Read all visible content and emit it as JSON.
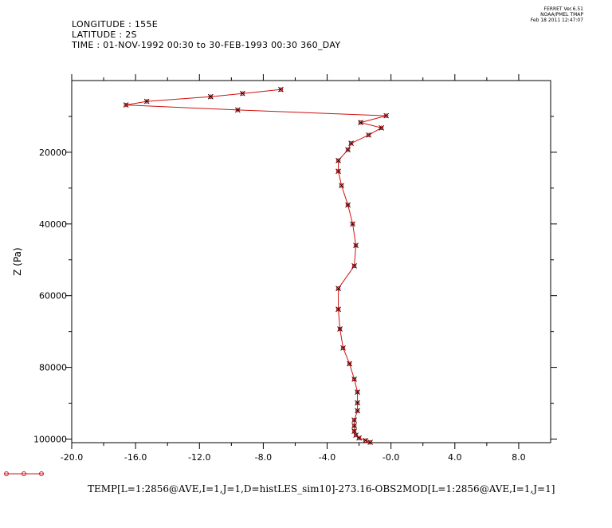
{
  "header": {
    "longitude": "LONGITUDE : 155E",
    "latitude": "LATITUDE : 2S",
    "time": "TIME : 01-NOV-1992 00:30 to 30-FEB-1993 00:30 360_DAY"
  },
  "stamp": {
    "line1": "FERRET Ver.6.51",
    "line2": "NOAA/PMEL TMAP",
    "line3": "Feb 18 2011 12:47:07"
  },
  "caption": "TEMP[L=1:2856@AVE,I=1,J=1,D=histLES_sim10]-273.16-OBS2MOD[L=1:2856@AVE,I=1,J=1]",
  "legend_lines": [
    "",
    ""
  ],
  "colors": {
    "series": "#d01010",
    "marker": "#000000",
    "axis": "#000000"
  },
  "chart_data": {
    "type": "line",
    "xlabel": "",
    "ylabel": "Z (Pa)",
    "xlim": [
      -20,
      10
    ],
    "ylim": [
      101000,
      0
    ],
    "y_inverted": true,
    "x_ticks": [
      -20.0,
      -16.0,
      -12.0,
      -8.0,
      -4.0,
      -0.0,
      4.0,
      8.0
    ],
    "x_tick_labels": [
      "-20.0",
      "-16.0",
      "-12.0",
      "-8.0",
      "-4.0",
      "-0.0",
      "4.0",
      "8.0"
    ],
    "y_ticks": [
      20000,
      40000,
      60000,
      80000,
      100000
    ],
    "y_tick_labels": [
      "20000",
      "40000",
      "60000",
      "80000",
      "100000"
    ],
    "grid": false,
    "series": [
      {
        "name": "",
        "points": [
          [
            -6.9,
            2500
          ],
          [
            -9.3,
            3600
          ],
          [
            -11.3,
            4500
          ],
          [
            -15.3,
            5800
          ],
          [
            -16.6,
            6800
          ],
          [
            -9.6,
            8200
          ],
          [
            -0.3,
            9800
          ],
          [
            -1.9,
            11700
          ],
          [
            -0.6,
            13200
          ],
          [
            -1.4,
            15200
          ],
          [
            -2.5,
            17500
          ],
          [
            -2.7,
            19300
          ],
          [
            -3.3,
            22300
          ],
          [
            -3.3,
            25300
          ],
          [
            -3.1,
            29300
          ],
          [
            -2.7,
            34700
          ],
          [
            -2.4,
            40000
          ],
          [
            -2.2,
            46000
          ],
          [
            -2.3,
            51700
          ],
          [
            -3.3,
            58000
          ],
          [
            -3.3,
            63800
          ],
          [
            -3.2,
            69300
          ],
          [
            -3.0,
            74600
          ],
          [
            -2.6,
            79000
          ],
          [
            -2.3,
            83300
          ],
          [
            -2.1,
            86900
          ],
          [
            -2.1,
            89900
          ],
          [
            -2.1,
            92100
          ],
          [
            -2.3,
            94700
          ],
          [
            -2.3,
            96300
          ],
          [
            -2.3,
            97800
          ],
          [
            -2.2,
            98900
          ],
          [
            -2.0,
            99700
          ],
          [
            -1.6,
            100400
          ],
          [
            -1.3,
            100900
          ]
        ]
      }
    ]
  }
}
